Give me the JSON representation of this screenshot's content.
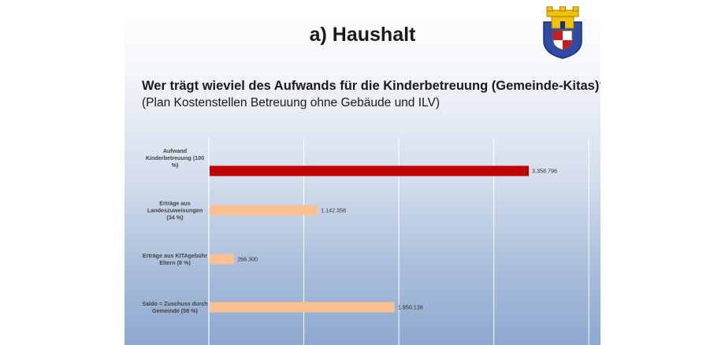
{
  "slide": {
    "title": "a) Haushalt",
    "heading": "Wer trägt wieviel des Aufwands für die Kinderbetreuung (Gemeinde-Kitas)?",
    "subheading": "(Plan Kostenstellen Betreuung ohne Gebäude und ILV)"
  },
  "crest": {
    "icon": "coat-of-arms-icon"
  },
  "colors": {
    "highlight_bar": "#c00000",
    "bar": "#fac090",
    "grid": "#ffffff"
  },
  "chart_data": {
    "type": "bar",
    "orientation": "horizontal",
    "grid": true,
    "xlim": [
      0,
      5000000
    ],
    "categories": [
      [
        "Aufwand",
        "Kinderbetreuung (100",
        "%)"
      ],
      [
        "Erträge aus",
        "Landeszuweisungen",
        "(34 %)"
      ],
      [
        "Erträge aus KITAgebühr",
        "Eltern (8 %)"
      ],
      [
        "Saldo = Zuschuss durch",
        "Gemeinde (58 %)"
      ]
    ],
    "values": [
      3358796,
      1142358,
      266300,
      1950138
    ],
    "value_labels": [
      "3.358.796",
      "1.142.358",
      "266.300",
      "1.950.138"
    ]
  }
}
